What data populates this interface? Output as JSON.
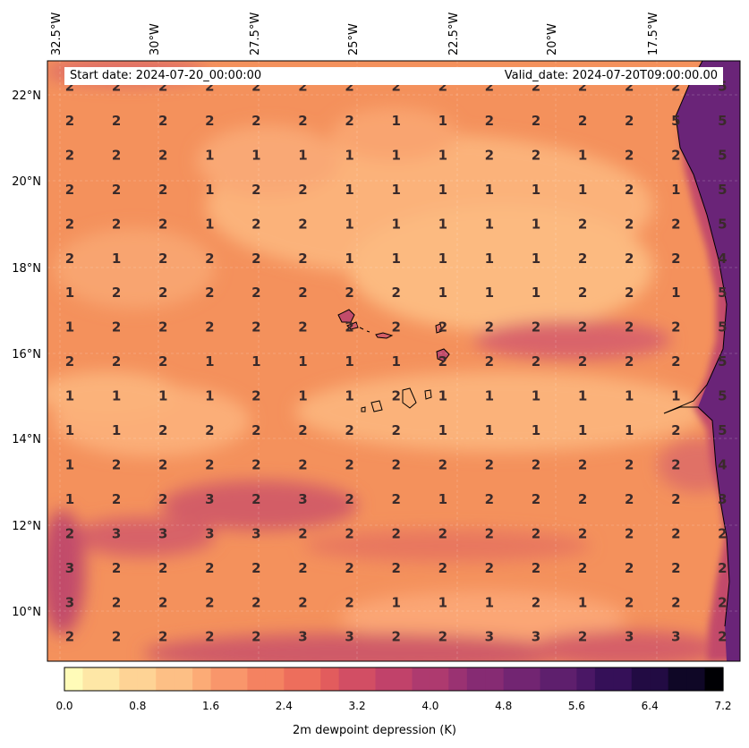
{
  "header": {
    "start_date": "Start date: 2024-07-20_00:00:00",
    "valid_date": "Valid_date: 2024-07-20T09:00:00.00"
  },
  "lon_labels": [
    "32.5°W",
    "30°W",
    "27.5°W",
    "25°W",
    "22.5°W",
    "20°W",
    "17.5°W"
  ],
  "lat_labels": [
    "22°N",
    "20°N",
    "18°N",
    "16°N",
    "14°N",
    "12°N",
    "10°N"
  ],
  "grid_values": [
    [
      2,
      2,
      2,
      2,
      2,
      2,
      2,
      2,
      2,
      2,
      2,
      2,
      2,
      2,
      5
    ],
    [
      2,
      2,
      2,
      2,
      2,
      2,
      2,
      1,
      1,
      2,
      2,
      2,
      2,
      5,
      5
    ],
    [
      2,
      2,
      2,
      1,
      1,
      1,
      1,
      1,
      1,
      2,
      2,
      1,
      2,
      2,
      5
    ],
    [
      2,
      2,
      2,
      1,
      2,
      2,
      1,
      1,
      1,
      1,
      1,
      1,
      2,
      1,
      5
    ],
    [
      2,
      2,
      2,
      1,
      2,
      2,
      1,
      1,
      1,
      1,
      1,
      2,
      2,
      2,
      5
    ],
    [
      2,
      1,
      2,
      2,
      2,
      2,
      1,
      1,
      1,
      1,
      1,
      2,
      2,
      2,
      4
    ],
    [
      1,
      2,
      2,
      2,
      2,
      2,
      2,
      2,
      1,
      1,
      1,
      2,
      2,
      1,
      5
    ],
    [
      1,
      2,
      2,
      2,
      2,
      2,
      2,
      2,
      2,
      2,
      2,
      2,
      2,
      2,
      5
    ],
    [
      2,
      2,
      2,
      1,
      1,
      1,
      1,
      1,
      2,
      2,
      2,
      2,
      2,
      2,
      5
    ],
    [
      1,
      1,
      1,
      1,
      2,
      1,
      1,
      2,
      1,
      1,
      1,
      1,
      1,
      1,
      5
    ],
    [
      1,
      1,
      2,
      2,
      2,
      2,
      2,
      2,
      1,
      1,
      1,
      1,
      1,
      2,
      5
    ],
    [
      1,
      2,
      2,
      2,
      2,
      2,
      2,
      2,
      2,
      2,
      2,
      2,
      2,
      2,
      4
    ],
    [
      1,
      2,
      2,
      3,
      2,
      3,
      2,
      2,
      1,
      2,
      2,
      2,
      2,
      2,
      3
    ],
    [
      2,
      3,
      3,
      3,
      3,
      2,
      2,
      2,
      2,
      2,
      2,
      2,
      2,
      2,
      2
    ],
    [
      3,
      2,
      2,
      2,
      2,
      2,
      2,
      2,
      2,
      2,
      2,
      2,
      2,
      2,
      2
    ],
    [
      3,
      2,
      2,
      2,
      2,
      2,
      2,
      1,
      1,
      1,
      2,
      1,
      2,
      2,
      2
    ],
    [
      2,
      2,
      2,
      2,
      2,
      3,
      3,
      2,
      2,
      3,
      3,
      2,
      3,
      3,
      2
    ]
  ],
  "colorbar": {
    "ticks": [
      "0.0",
      "0.8",
      "1.6",
      "2.4",
      "3.2",
      "4.0",
      "4.8",
      "5.6",
      "6.4",
      "7.2"
    ],
    "label": "2m dewpoint depression (K)",
    "colors": [
      "#fffbb8",
      "#fee7a6",
      "#fed395",
      "#fdbf85",
      "#fcab76",
      "#f9966b",
      "#f48261",
      "#ed6e5c",
      "#e25c5d",
      "#d24e64",
      "#c1426a",
      "#ae3a6f",
      "#9a3272",
      "#862b73",
      "#722572",
      "#5e1f6d",
      "#4a1765",
      "#351058",
      "#220b43",
      "#0f0726",
      "#000004"
    ]
  },
  "colors": {
    "base_field": "#f4915c",
    "low_field": "#fbb27a",
    "high_field": "#cf5b68",
    "coast_dark": "#6a2478"
  }
}
